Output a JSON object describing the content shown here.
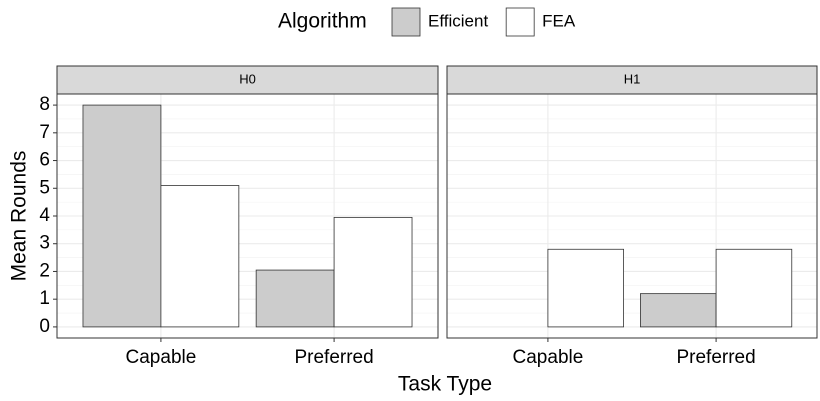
{
  "chart_data": {
    "type": "bar",
    "legend_title": "Algorithm",
    "x_label": "Task Type",
    "y_label": "Mean Rounds",
    "categories": [
      "Capable",
      "Preferred"
    ],
    "series": [
      {
        "name": "Efficient",
        "color": "#cccccc"
      },
      {
        "name": "FEA",
        "color": "#ffffff"
      }
    ],
    "facets": [
      {
        "title": "H0",
        "values": [
          [
            8,
            2.05
          ],
          [
            5.1,
            3.95
          ]
        ]
      },
      {
        "title": "H1",
        "values": [
          [
            0,
            1.2
          ],
          [
            2.8,
            2.8
          ]
        ]
      }
    ],
    "ylim": [
      -0.4,
      8.4
    ],
    "yticks": [
      0,
      1,
      2,
      3,
      4,
      5,
      6,
      7,
      8
    ],
    "grid": true
  }
}
